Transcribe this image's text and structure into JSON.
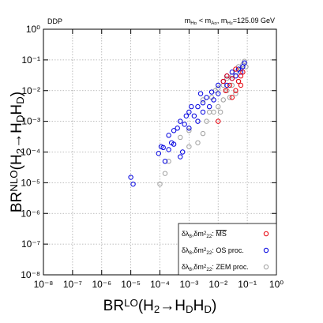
{
  "chart_data": {
    "type": "scatter",
    "xscale": "log",
    "yscale": "log",
    "grid": true,
    "legend": "lower right",
    "xlim": [
      1e-08,
      1
    ],
    "ylim": [
      1e-08,
      1
    ],
    "xticks": [
      {
        "value": 1e-08,
        "label": "10⁻⁸"
      },
      {
        "value": 1e-07,
        "label": "10⁻⁷"
      },
      {
        "value": 1e-06,
        "label": "10⁻⁶"
      },
      {
        "value": 1e-05,
        "label": "10⁻⁵"
      },
      {
        "value": 0.0001,
        "label": "10⁻⁴"
      },
      {
        "value": 0.001,
        "label": "10⁻³"
      },
      {
        "value": 0.01,
        "label": "10⁻²"
      },
      {
        "value": 0.1,
        "label": "10⁻¹"
      },
      {
        "value": 1,
        "label": "10⁰"
      }
    ],
    "yticks": [
      {
        "value": 1e-08,
        "label": "10⁻⁸"
      },
      {
        "value": 1e-07,
        "label": "10⁻⁷"
      },
      {
        "value": 1e-06,
        "label": "10⁻⁶"
      },
      {
        "value": 1e-05,
        "label": "10⁻⁵"
      },
      {
        "value": 0.0001,
        "label": "10⁻⁴"
      },
      {
        "value": 0.001,
        "label": "10⁻³"
      },
      {
        "value": 0.01,
        "label": "10⁻²"
      },
      {
        "value": 0.1,
        "label": "10⁻¹"
      },
      {
        "value": 1,
        "label": "10⁰"
      }
    ],
    "xlabel": [
      {
        "text": "BR"
      },
      {
        "text": "LO",
        "shift": "super"
      },
      {
        "text": "(H"
      },
      {
        "text": "2",
        "shift": "sub"
      },
      {
        "text": "→H"
      },
      {
        "text": "D",
        "shift": "sub"
      },
      {
        "text": "H"
      },
      {
        "text": "D",
        "shift": "sub"
      },
      {
        "text": ")"
      }
    ],
    "ylabel": [
      {
        "text": "BR"
      },
      {
        "text": "NLO",
        "shift": "super"
      },
      {
        "text": "(H"
      },
      {
        "text": "2",
        "shift": "sub"
      },
      {
        "text": "→H"
      },
      {
        "text": "D",
        "shift": "sub"
      },
      {
        "text": "H"
      },
      {
        "text": "D",
        "shift": "sub"
      },
      {
        "text": ")"
      }
    ],
    "annotation_left": "DDP",
    "annotation_right": [
      {
        "text": "m"
      },
      {
        "text": "H",
        "shift": "sub"
      },
      {
        "text": "D",
        "shift": "subsub"
      },
      {
        "text": " < m"
      },
      {
        "text": "A",
        "shift": "sub"
      },
      {
        "text": "D",
        "shift": "subsub"
      },
      {
        "text": ",  m"
      },
      {
        "text": "H",
        "shift": "sub"
      },
      {
        "text": "2",
        "shift": "subsub"
      },
      {
        "text": "=125.09 GeV"
      }
    ],
    "series": [
      {
        "name": [
          {
            "text": "δλ"
          },
          {
            "text": "8",
            "shift": "sub"
          },
          {
            "text": ",δm"
          },
          {
            "text": "2",
            "shift": "super"
          },
          {
            "text": "22",
            "shift": "sub"
          },
          {
            "text": ": "
          },
          {
            "text": "MS",
            "overline": true
          }
        ],
        "color": "#e8000b",
        "x": [
          0.01,
          0.015,
          0.02,
          0.025,
          0.03,
          0.03,
          0.04,
          0.05,
          0.06,
          0.06,
          0.07,
          0.04,
          0.018
        ],
        "y": [
          0.001,
          0.02,
          0.03,
          0.015,
          0.025,
          0.006,
          0.05,
          0.02,
          0.03,
          0.015,
          0.04,
          0.01,
          0.01
        ]
      },
      {
        "name": [
          {
            "text": "δλ"
          },
          {
            "text": "8",
            "shift": "sub"
          },
          {
            "text": ",δm"
          },
          {
            "text": "2",
            "shift": "super"
          },
          {
            "text": "22",
            "shift": "sub"
          },
          {
            "text": ": OS proc."
          }
        ],
        "color": "#0000e0",
        "x": [
          1e-05,
          1.2e-05,
          9e-05,
          0.00011,
          0.00013,
          0.00015,
          0.0002,
          0.00025,
          0.0003,
          0.0002,
          0.0003,
          0.0004,
          0.0005,
          0.0006,
          0.0005,
          0.0007,
          0.0008,
          0.001,
          0.001,
          0.0015,
          0.002,
          0.002,
          0.003,
          0.003,
          0.004,
          0.005,
          0.006,
          0.007,
          0.01,
          0.01,
          0.015,
          0.02,
          0.02,
          0.03,
          0.03,
          0.04,
          0.05,
          0.06,
          0.07,
          0.08,
          0.0025,
          0.0012
        ],
        "y": [
          1.5e-05,
          9e-06,
          9e-05,
          0.00015,
          0.00014,
          5e-05,
          0.00012,
          0.0002,
          0.00018,
          0.00035,
          0.0005,
          0.0006,
          7e-05,
          0.0001,
          0.001,
          0.0008,
          0.0015,
          0.0006,
          0.002,
          0.0015,
          0.003,
          0.001,
          0.004,
          0.002,
          0.006,
          0.003,
          0.009,
          0.005,
          0.015,
          0.008,
          0.02,
          0.015,
          0.03,
          0.025,
          0.04,
          0.03,
          0.05,
          0.04,
          0.06,
          0.08,
          0.008,
          0.003
        ]
      },
      {
        "name": [
          {
            "text": "δλ"
          },
          {
            "text": "8",
            "shift": "sub"
          },
          {
            "text": ",δm"
          },
          {
            "text": "2",
            "shift": "super"
          },
          {
            "text": "22",
            "shift": "sub"
          },
          {
            "text": ": ZEM proc."
          }
        ],
        "color": "#a0a0a0",
        "x": [
          0.0001,
          0.00015,
          0.0002,
          0.001,
          0.002,
          0.003,
          0.001,
          0.004,
          0.005,
          0.006,
          0.008,
          0.01,
          0.01,
          0.015,
          0.015,
          0.02,
          0.02,
          0.025,
          0.03,
          0.03,
          0.04,
          0.04,
          0.05,
          0.05,
          0.06,
          0.07,
          0.08,
          0.09,
          0.007,
          0.012,
          0.003,
          0.0005
        ],
        "y": [
          9e-06,
          2e-05,
          5e-05,
          0.00015,
          0.0002,
          0.0004,
          0.0005,
          0.001,
          0.002,
          0.006,
          0.01,
          0.003,
          0.012,
          0.005,
          0.015,
          0.01,
          0.025,
          0.006,
          0.015,
          0.03,
          0.04,
          0.008,
          0.06,
          0.02,
          0.05,
          0.07,
          0.09,
          0.06,
          0.002,
          0.002,
          0.005,
          0.0003
        ]
      }
    ]
  }
}
